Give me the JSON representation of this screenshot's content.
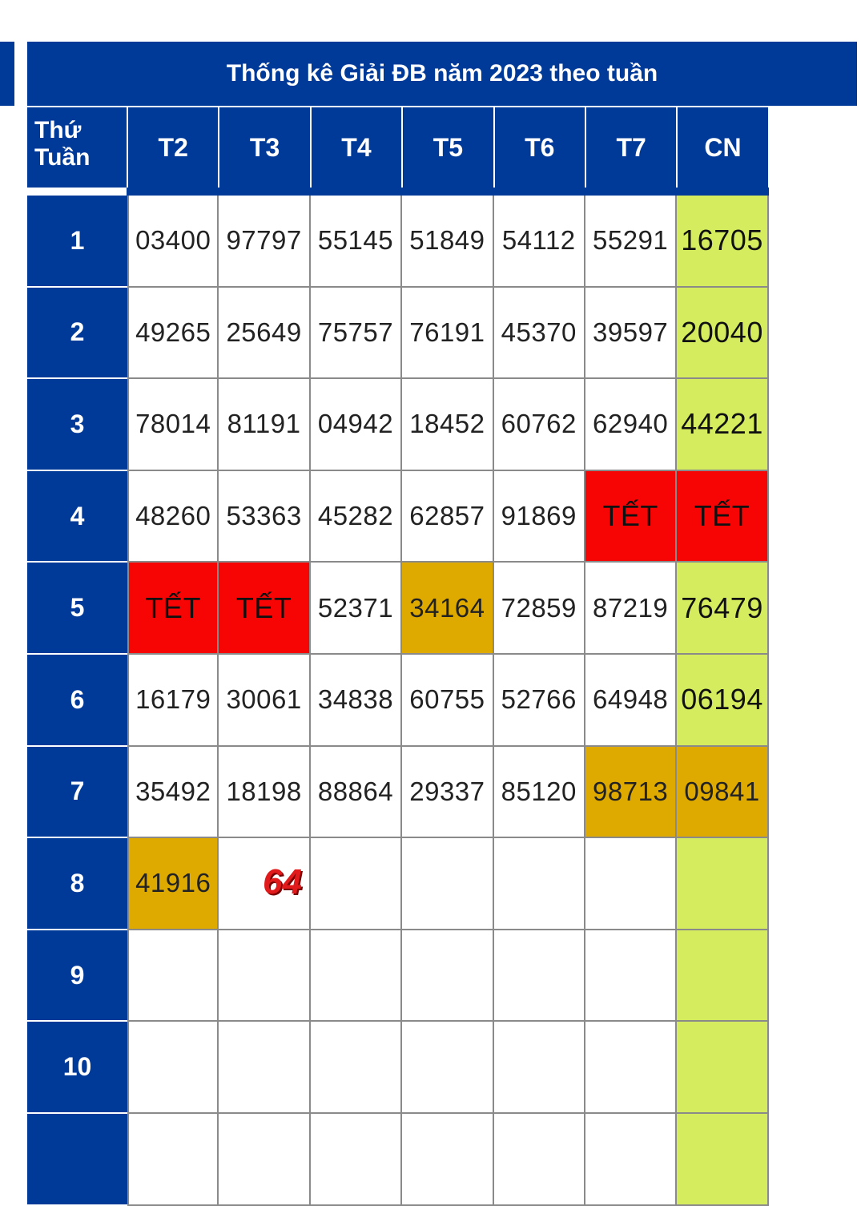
{
  "title": "Thống kê Giải ĐB năm 2023 theo tuần",
  "corner_label_line1": "Thứ",
  "corner_label_line2": "Tuần",
  "days": [
    "T2",
    "T3",
    "T4",
    "T5",
    "T6",
    "T7",
    "CN"
  ],
  "rows": [
    {
      "week": "1",
      "cells": [
        "03400",
        "97797",
        "55145",
        "51849",
        "54112",
        "55291",
        "16705"
      ]
    },
    {
      "week": "2",
      "cells": [
        "49265",
        "25649",
        "75757",
        "76191",
        "45370",
        "39597",
        "20040"
      ]
    },
    {
      "week": "3",
      "cells": [
        "78014",
        "81191",
        "04942",
        "18452",
        "60762",
        "62940",
        "44221"
      ]
    },
    {
      "week": "4",
      "cells": [
        "48260",
        "53363",
        "45282",
        "62857",
        "91869",
        "TẾT",
        "TẾT"
      ]
    },
    {
      "week": "5",
      "cells": [
        "TẾT",
        "TẾT",
        "52371",
        "34164",
        "72859",
        "87219",
        "76479"
      ]
    },
    {
      "week": "6",
      "cells": [
        "16179",
        "30061",
        "34838",
        "60755",
        "52766",
        "64948",
        "06194"
      ]
    },
    {
      "week": "7",
      "cells": [
        "35492",
        "18198",
        "88864",
        "29337",
        "85120",
        "98713",
        "09841"
      ]
    },
    {
      "week": "8",
      "cells": [
        "41916",
        "",
        "",
        "",
        "",
        "",
        ""
      ]
    },
    {
      "week": "9",
      "cells": [
        "",
        "",
        "",
        "",
        "",
        "",
        ""
      ]
    },
    {
      "week": "10",
      "cells": [
        "",
        "",
        "",
        "",
        "",
        "",
        ""
      ]
    },
    {
      "week": "",
      "cells": [
        "",
        "",
        "",
        "",
        "",
        "",
        ""
      ]
    }
  ],
  "highlighted_cells": [
    "34164",
    "98713",
    "09841",
    "41916"
  ],
  "annotation": "64",
  "colors": {
    "header_blue": "#003a99",
    "sunday_green": "#d4ec5e",
    "tet_red": "#f70404",
    "highlight_gold": "#dfaa00",
    "pen_blue": "#1d2fe0",
    "annotation_red": "#e11b1b"
  }
}
